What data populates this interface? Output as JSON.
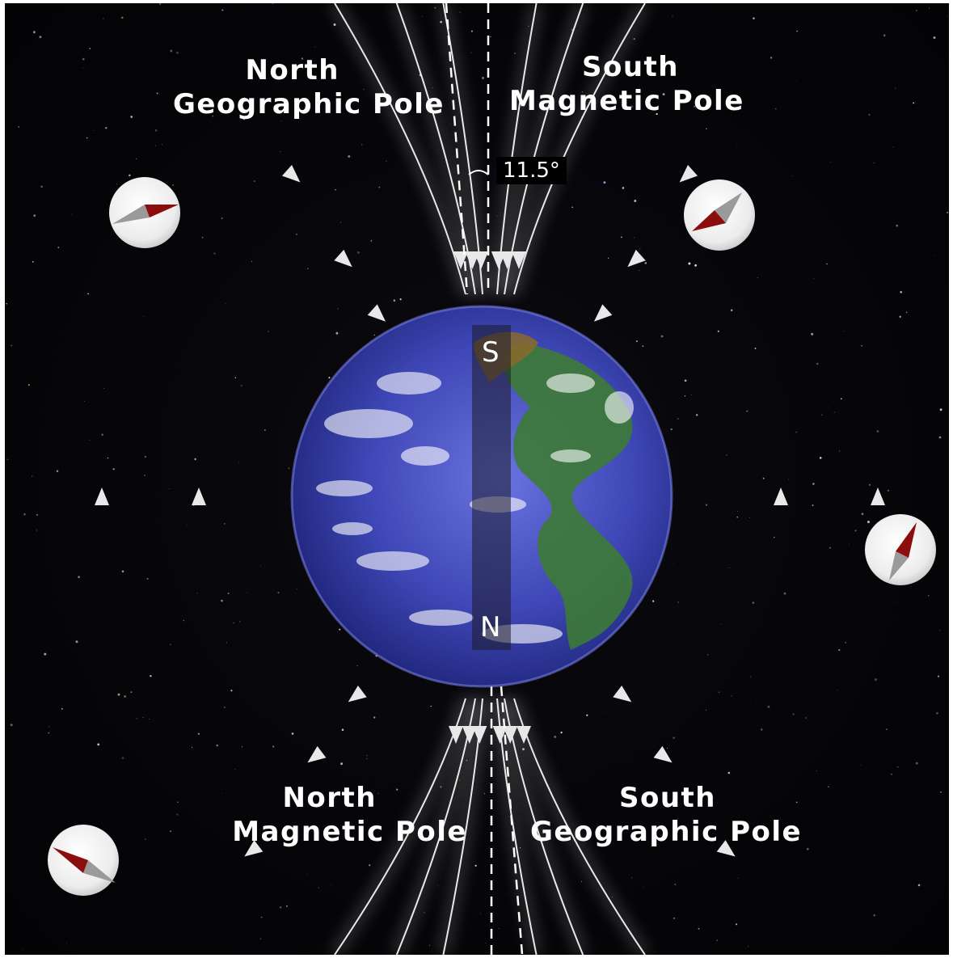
{
  "labels": {
    "top_left_line1": "North",
    "top_left_line2": "Geographic Pole",
    "top_right_line1": "South",
    "top_right_line2": "Magnetic Pole",
    "bottom_left_line1": "North",
    "bottom_left_line2": "Magnetic Pole",
    "bottom_right_line1": "South",
    "bottom_right_line2": "Geographic Pole",
    "angle": "11.5°"
  },
  "magnet": {
    "top_letter": "S",
    "bottom_letter": "N"
  },
  "colors": {
    "background": "#050507",
    "field_lines": "#ffffff",
    "ocean": "#3a44b8",
    "land": "#3f7d3a",
    "compass_red": "#8b0d0d",
    "compass_gray": "#9a9a9a"
  },
  "compasses": [
    {
      "position": "upper-left",
      "needle": "red tip points right"
    },
    {
      "position": "upper-right",
      "needle": "red tip points down-left"
    },
    {
      "position": "middle-right",
      "needle": "red tip points up"
    },
    {
      "position": "lower-left",
      "needle": "red tip points left"
    }
  ]
}
